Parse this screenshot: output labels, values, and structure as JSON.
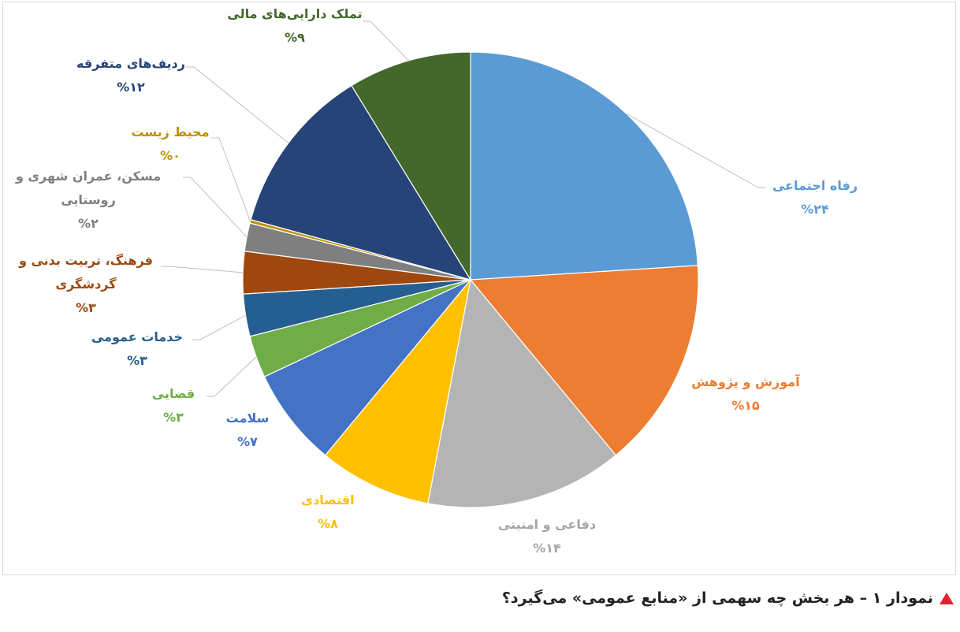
{
  "caption": {
    "text": "نمودار ۱ – هر بخش چه سهمی از «منابع عمومی» می‌گیرد؟",
    "marker_color": "#e8202a"
  },
  "chart_data": {
    "type": "pie",
    "start_angle_deg": 0,
    "direction": "clockwise",
    "legend": "none",
    "slices": [
      {
        "label": [
          "رفاه اجتماعی"
        ],
        "pct_label": "%۲۴",
        "value": 24,
        "color": "#5b9bd5",
        "label_color": "#5b9bd5"
      },
      {
        "label": [
          "آموزش و پژوهش"
        ],
        "pct_label": "%۱۵",
        "value": 15,
        "color": "#ed7d31",
        "label_color": "#ed7d31"
      },
      {
        "label": [
          "دفاعی و امنیتی"
        ],
        "pct_label": "%۱۴",
        "value": 14,
        "color": "#b4b4b4",
        "label_color": "#a5a5a5"
      },
      {
        "label": [
          "اقتصادی"
        ],
        "pct_label": "%۸",
        "value": 8,
        "color": "#ffc000",
        "label_color": "#ffc000"
      },
      {
        "label": [
          "سلامت"
        ],
        "pct_label": "%۷",
        "value": 7,
        "color": "#4472c4",
        "label_color": "#4472c4"
      },
      {
        "label": [
          "قضایی"
        ],
        "pct_label": "%۳",
        "value": 3,
        "color": "#70ad47",
        "label_color": "#70ad47"
      },
      {
        "label": [
          "خدمات عمومی"
        ],
        "pct_label": "%۳",
        "value": 3,
        "color": "#255e91",
        "label_color": "#255e91"
      },
      {
        "label": [
          "فرهنگ، تربیت بدنی و",
          "گردشگری"
        ],
        "pct_label": "%۳",
        "value": 3,
        "color": "#9e480e",
        "label_color": "#9e480e"
      },
      {
        "label": [
          "مسکن، عمران شهری و",
          "روستایی"
        ],
        "pct_label": "%۲",
        "value": 2,
        "color": "#7f7f7f",
        "label_color": "#7f7f7f"
      },
      {
        "label": [
          "محیط زیست"
        ],
        "pct_label": "%۰",
        "value": 0.25,
        "color": "#bf9000",
        "label_color": "#bf9000"
      },
      {
        "label": [
          "ردیف‌های متفرقه"
        ],
        "pct_label": "%۱۲",
        "value": 12,
        "color": "#264478",
        "label_color": "#264478"
      },
      {
        "label": [
          "تملک دارایی‌های مالی"
        ],
        "pct_label": "%۹",
        "value": 8.75,
        "color": "#43682b",
        "label_color": "#43682b"
      }
    ]
  }
}
